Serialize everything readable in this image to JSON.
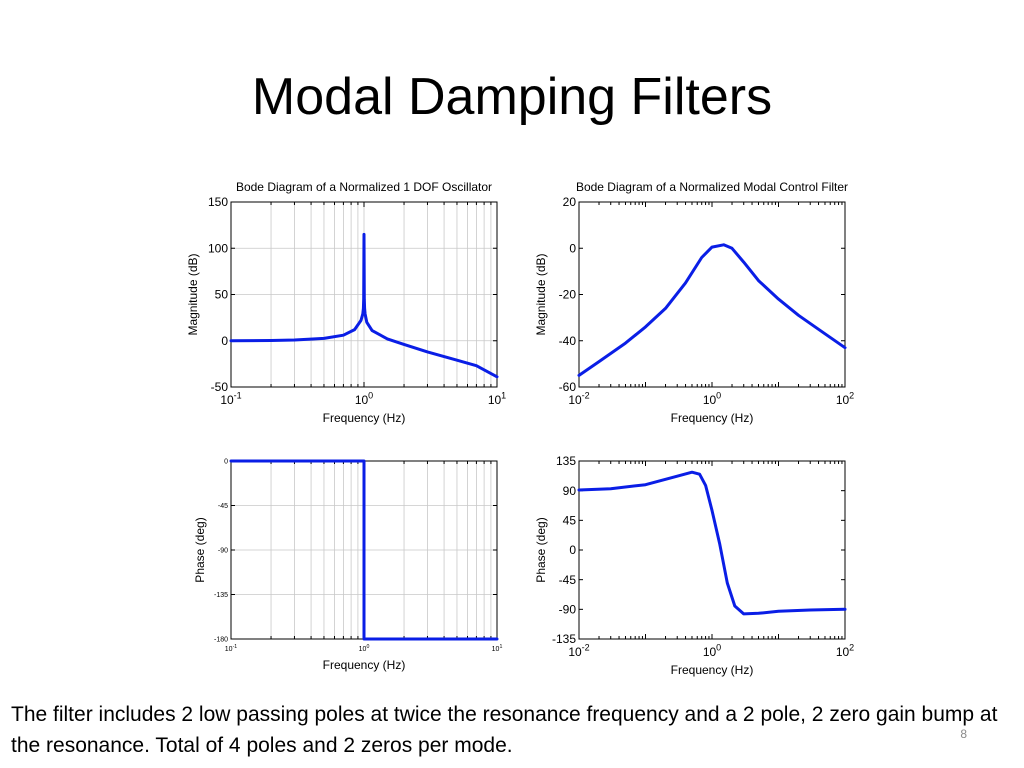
{
  "slide": {
    "title": "Modal Damping Filters",
    "caption": "The filter includes 2 low passing poles at twice the resonance frequency and a 2 pole, 2 zero gain bump at the resonance. Total of 4 poles and 2 zeros per mode.",
    "page_number": "8"
  },
  "colors": {
    "line": "#0a1ee6",
    "grid": "#c8c8c8",
    "axis": "#000000"
  },
  "chart_data": [
    {
      "id": "osc-mag",
      "type": "line",
      "title": "Bode Diagram of a Normalized 1 DOF Oscillator",
      "xlabel": "Frequency (Hz)",
      "ylabel": "Magnitude (dB)",
      "xscale": "log",
      "xlim": [
        0.1,
        10
      ],
      "ylim": [
        -50,
        150
      ],
      "xticks": [
        {
          "base": "10",
          "exp": "-1"
        },
        {
          "base": "10",
          "exp": "0"
        },
        {
          "base": "10",
          "exp": "1"
        }
      ],
      "yticks": [
        "-50",
        "0",
        "50",
        "100",
        "150"
      ],
      "grid": true,
      "x": [
        0.1,
        0.2,
        0.3,
        0.5,
        0.7,
        0.85,
        0.95,
        0.98,
        0.99,
        0.995,
        1.0,
        1.005,
        1.01,
        1.02,
        1.05,
        1.15,
        1.5,
        2,
        3,
        5,
        7,
        10
      ],
      "y": [
        0,
        0.3,
        0.8,
        2.5,
        6,
        12,
        22,
        29,
        35,
        45,
        115,
        45,
        35,
        29,
        20,
        11,
        2,
        -4,
        -12,
        -21,
        -27,
        -39
      ]
    },
    {
      "id": "filter-mag",
      "type": "line",
      "title": "Bode Diagram of a Normalized Modal Control Filter",
      "xlabel": "Frequency (Hz)",
      "ylabel": "Magnitude (dB)",
      "xscale": "log",
      "xlim": [
        0.01,
        100
      ],
      "ylim": [
        -60,
        20
      ],
      "xticks": [
        {
          "base": "10",
          "exp": "-2"
        },
        {
          "base": "10",
          "exp": "0"
        },
        {
          "base": "10",
          "exp": "2"
        }
      ],
      "yticks": [
        "-60",
        "-40",
        "-20",
        "0",
        "20"
      ],
      "grid": false,
      "x": [
        0.01,
        0.02,
        0.05,
        0.1,
        0.2,
        0.4,
        0.7,
        1.0,
        1.5,
        2,
        3,
        5,
        10,
        20,
        50,
        100
      ],
      "y": [
        -55,
        -49,
        -41,
        -34,
        -26,
        -15,
        -4,
        0.5,
        1.5,
        0,
        -6,
        -14,
        -22,
        -29,
        -37,
        -43
      ]
    },
    {
      "id": "osc-phase",
      "type": "line",
      "title": "",
      "xlabel": "Frequency (Hz)",
      "ylabel": "Phase (deg)",
      "xscale": "log",
      "xlim": [
        0.1,
        10
      ],
      "ylim": [
        -180,
        0
      ],
      "xticks": [
        {
          "base": "10",
          "exp": "-1"
        },
        {
          "base": "10",
          "exp": "0"
        },
        {
          "base": "10",
          "exp": "1"
        }
      ],
      "yticks": [
        "-180",
        "-135",
        "-90",
        "-45",
        "0"
      ],
      "grid": true,
      "x": [
        0.1,
        0.999,
        1.0,
        1.0,
        10
      ],
      "y": [
        0,
        0,
        0,
        -180,
        -180
      ]
    },
    {
      "id": "filter-phase",
      "type": "line",
      "title": "",
      "xlabel": "Frequency (Hz)",
      "ylabel": "Phase (deg)",
      "xscale": "log",
      "xlim": [
        0.01,
        100
      ],
      "ylim": [
        -135,
        135
      ],
      "xticks": [
        {
          "base": "10",
          "exp": "-2"
        },
        {
          "base": "10",
          "exp": "0"
        },
        {
          "base": "10",
          "exp": "2"
        }
      ],
      "yticks": [
        "-135",
        "-90",
        "-45",
        "0",
        "45",
        "90",
        "135"
      ],
      "grid": false,
      "x": [
        0.01,
        0.03,
        0.1,
        0.3,
        0.5,
        0.65,
        0.8,
        1.0,
        1.3,
        1.7,
        2.2,
        3,
        5,
        10,
        30,
        100
      ],
      "y": [
        91,
        93,
        99,
        112,
        118,
        115,
        98,
        60,
        10,
        -50,
        -85,
        -97,
        -96,
        -93,
        -91,
        -90
      ]
    }
  ]
}
